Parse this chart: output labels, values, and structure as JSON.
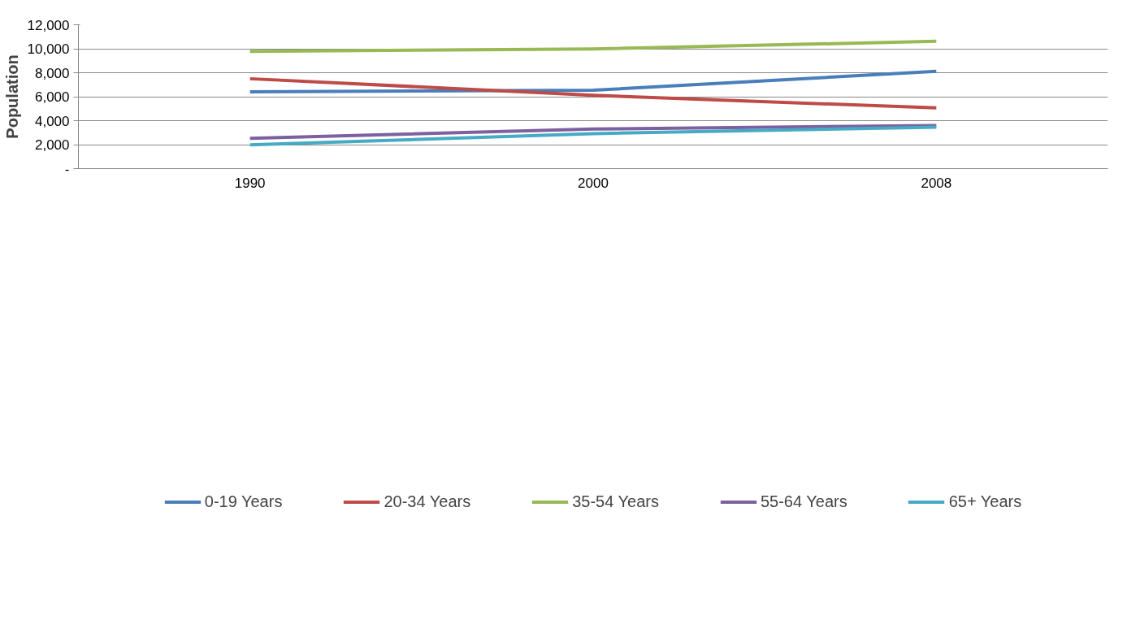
{
  "chart_data": {
    "type": "line",
    "ylabel": "Population",
    "categories": [
      "1990",
      "2000",
      "2008"
    ],
    "series": [
      {
        "name": "0-19 Years",
        "color": "#4a7ebb",
        "values": [
          6400,
          6540,
          8120
        ]
      },
      {
        "name": "20-34 Years",
        "color": "#be4b48",
        "values": [
          7500,
          6120,
          5060
        ]
      },
      {
        "name": "35-54 Years",
        "color": "#98b954",
        "values": [
          9780,
          9980,
          10620
        ]
      },
      {
        "name": "55-64 Years",
        "color": "#7d60a0",
        "values": [
          2520,
          3300,
          3600
        ]
      },
      {
        "name": "65+ Years",
        "color": "#46aac5",
        "values": [
          1980,
          2920,
          3460
        ]
      }
    ],
    "ylim": [
      0,
      12000
    ],
    "yticks": [
      {
        "value": 0,
        "label": "-"
      },
      {
        "value": 2000,
        "label": "2,000"
      },
      {
        "value": 4000,
        "label": "4,000"
      },
      {
        "value": 6000,
        "label": "6,000"
      },
      {
        "value": 8000,
        "label": "8,000"
      },
      {
        "value": 10000,
        "label": "10,000"
      },
      {
        "value": 12000,
        "label": "12,000"
      }
    ],
    "grid": "y",
    "legend": "bottom",
    "marker": "none",
    "line_style": "solid"
  }
}
